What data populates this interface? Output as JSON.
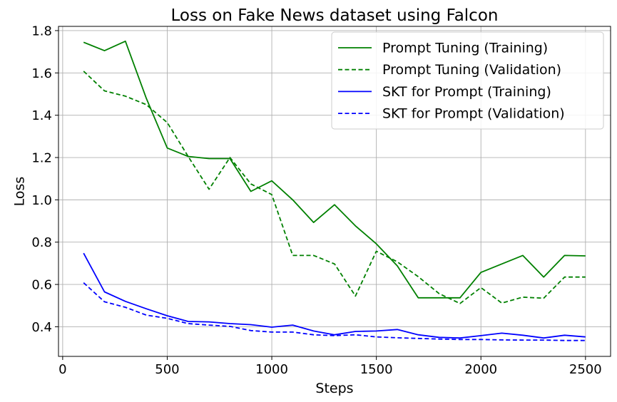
{
  "chart_data": {
    "type": "line",
    "title": "Loss on Fake News dataset using Falcon",
    "xlabel": "Steps",
    "ylabel": "Loss",
    "xlim": [
      -20,
      2620
    ],
    "ylim": [
      0.26,
      1.82
    ],
    "xticks": [
      0,
      500,
      1000,
      1500,
      2000,
      2500
    ],
    "yticks": [
      0.4,
      0.6,
      0.8,
      1.0,
      1.2,
      1.4,
      1.6,
      1.8
    ],
    "grid": true,
    "legend_position": "top-right",
    "x": [
      100,
      200,
      300,
      400,
      500,
      600,
      700,
      800,
      900,
      1000,
      1100,
      1200,
      1300,
      1400,
      1500,
      1600,
      1700,
      1800,
      1900,
      2000,
      2100,
      2200,
      2300,
      2400,
      2500
    ],
    "series": [
      {
        "name": "Prompt Tuning (Training)",
        "color": "#008000",
        "style": "solid",
        "values": [
          1.745,
          1.705,
          1.75,
          1.48,
          1.245,
          1.205,
          1.195,
          1.195,
          1.04,
          1.09,
          1.0,
          0.893,
          0.977,
          0.877,
          0.792,
          0.688,
          0.537,
          0.537,
          0.537,
          0.657,
          0.697,
          0.737,
          0.635,
          0.737,
          0.735
        ]
      },
      {
        "name": "Prompt Tuning (Validation)",
        "color": "#008000",
        "style": "dashed",
        "values": [
          1.608,
          1.515,
          1.49,
          1.45,
          1.365,
          1.205,
          1.05,
          1.2,
          1.075,
          1.025,
          0.737,
          0.737,
          0.697,
          0.545,
          0.757,
          0.707,
          0.637,
          0.557,
          0.51,
          0.585,
          0.512,
          0.54,
          0.535,
          0.635,
          0.635
        ]
      },
      {
        "name": "SKT for Prompt (Training)",
        "color": "#0000ff",
        "style": "solid",
        "values": [
          0.748,
          0.565,
          0.52,
          0.485,
          0.452,
          0.425,
          0.423,
          0.415,
          0.41,
          0.398,
          0.408,
          0.38,
          0.362,
          0.378,
          0.38,
          0.387,
          0.362,
          0.35,
          0.347,
          0.358,
          0.37,
          0.36,
          0.347,
          0.36,
          0.352
        ]
      },
      {
        "name": "SKT for Prompt (Validation)",
        "color": "#0000ff",
        "style": "dashed",
        "values": [
          0.608,
          0.518,
          0.492,
          0.455,
          0.44,
          0.415,
          0.408,
          0.402,
          0.382,
          0.375,
          0.375,
          0.362,
          0.358,
          0.362,
          0.352,
          0.348,
          0.345,
          0.342,
          0.34,
          0.34,
          0.338,
          0.337,
          0.337,
          0.335,
          0.335
        ]
      }
    ]
  }
}
